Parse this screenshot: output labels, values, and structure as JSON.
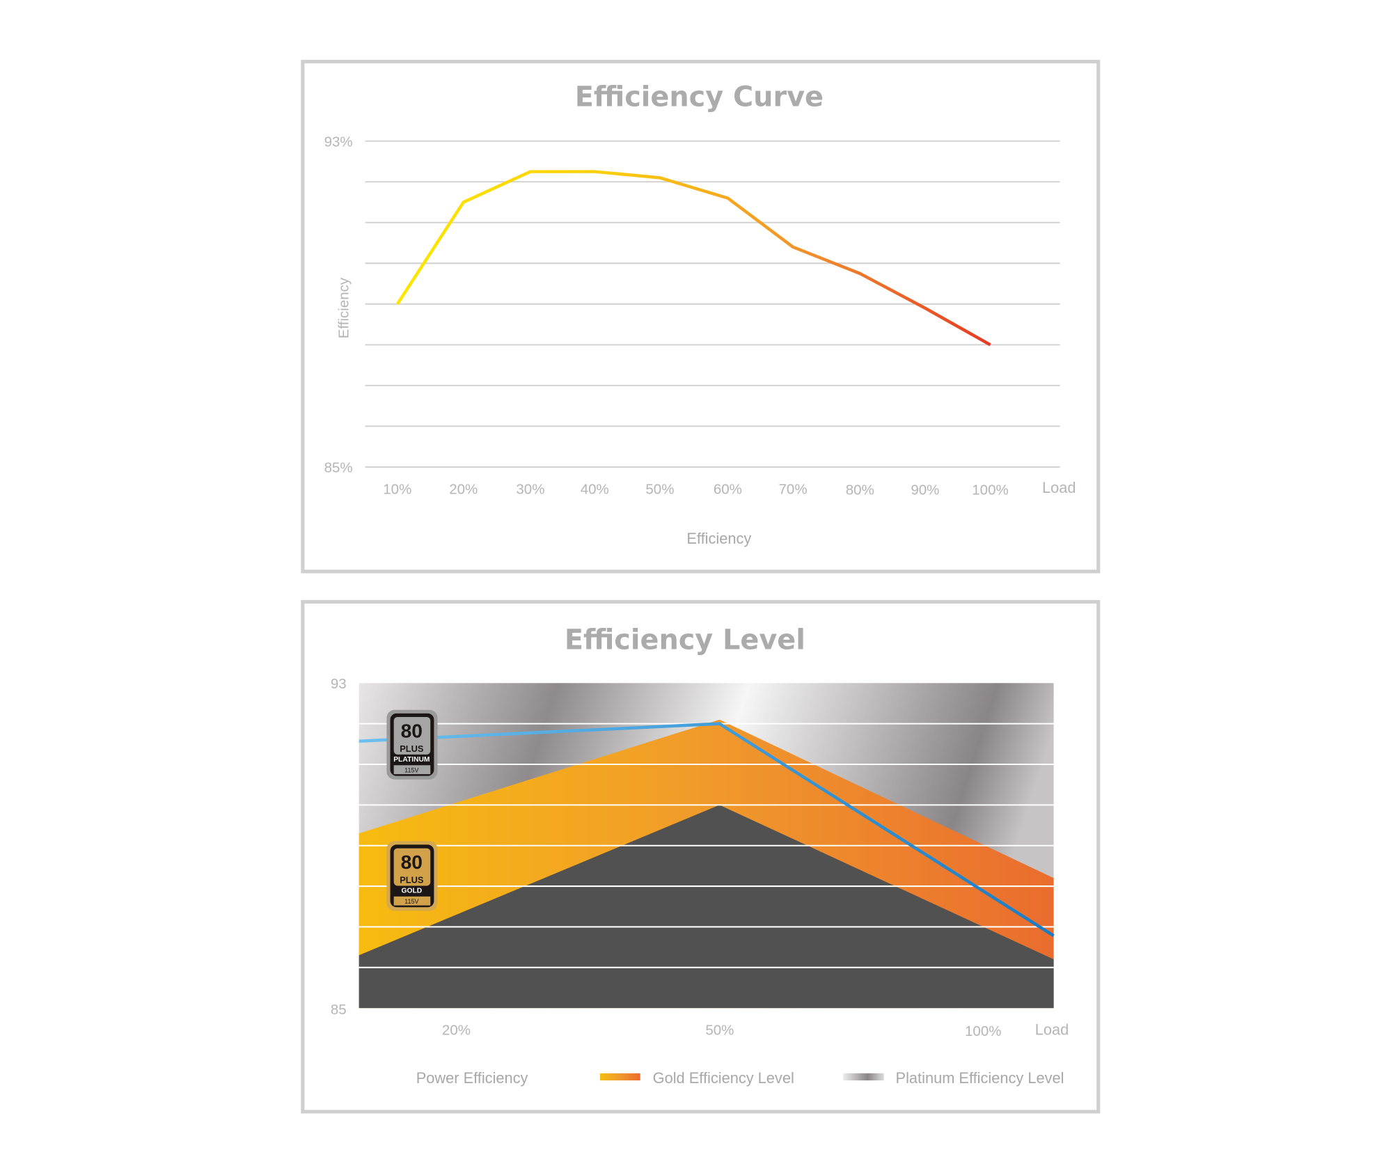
{
  "chart_data": [
    {
      "type": "line",
      "title": "Efficiency Curve",
      "xlabel": "Load",
      "ylabel": "Efficiency",
      "categories": [
        "10%",
        "20%",
        "30%",
        "40%",
        "50%",
        "60%",
        "70%",
        "80%",
        "90%",
        "100%"
      ],
      "ylim": [
        85,
        93
      ],
      "y_tick_labels": [
        "93%",
        "85%"
      ],
      "grid": true,
      "series": [
        {
          "name": "Efficiency",
          "values": [
            89.0,
            91.5,
            92.25,
            92.25,
            92.1,
            91.6,
            90.4,
            89.75,
            88.9,
            88.0
          ]
        }
      ],
      "legend": "bottom-center",
      "colors": {
        "start": "#ffe000",
        "mid": "#f29a2e",
        "end": "#e63a25",
        "grid": "#d0d0d0"
      }
    },
    {
      "type": "area",
      "title": "Efficiency Level",
      "xlabel": "Load",
      "x_tick_labels": [
        "20%",
        "50%",
        "100%"
      ],
      "x_index_note": "x values in tick-index units: 20%=0, 50%=1, 100%=2",
      "xlim": [
        -0.37,
        2.27
      ],
      "ylim": [
        85,
        93
      ],
      "y_tick_labels": [
        "93",
        "85"
      ],
      "series": [
        {
          "name": "Power Efficiency",
          "type": "line",
          "points": [
            [
              -0.37,
              91.57
            ],
            [
              1,
              92.0
            ],
            [
              2.27,
              86.78
            ]
          ],
          "color": "#3a9ee0"
        },
        {
          "name": "Gold Efficiency Level",
          "type": "band",
          "upper": [
            [
              -0.37,
              89.3
            ],
            [
              1,
              92.1
            ],
            [
              2.27,
              88.2
            ]
          ],
          "lower": [
            [
              -0.37,
              86.3
            ],
            [
              1,
              90.0
            ],
            [
              2.27,
              86.2
            ]
          ],
          "colors": [
            "#f7b912",
            "#ea6d2e"
          ]
        },
        {
          "name": "Platinum Efficiency Level",
          "type": "background",
          "colors": [
            "#e6e4e4",
            "#8c8789",
            "#f4f4f4"
          ]
        }
      ],
      "base_color": "#515151",
      "badges": [
        {
          "number": "80",
          "brand": "PLUS",
          "level": "PLATINUM",
          "voltage": "115V"
        },
        {
          "number": "80",
          "brand": "PLUS",
          "level": "GOLD",
          "voltage": "115V"
        }
      ],
      "legend": "bottom"
    }
  ]
}
